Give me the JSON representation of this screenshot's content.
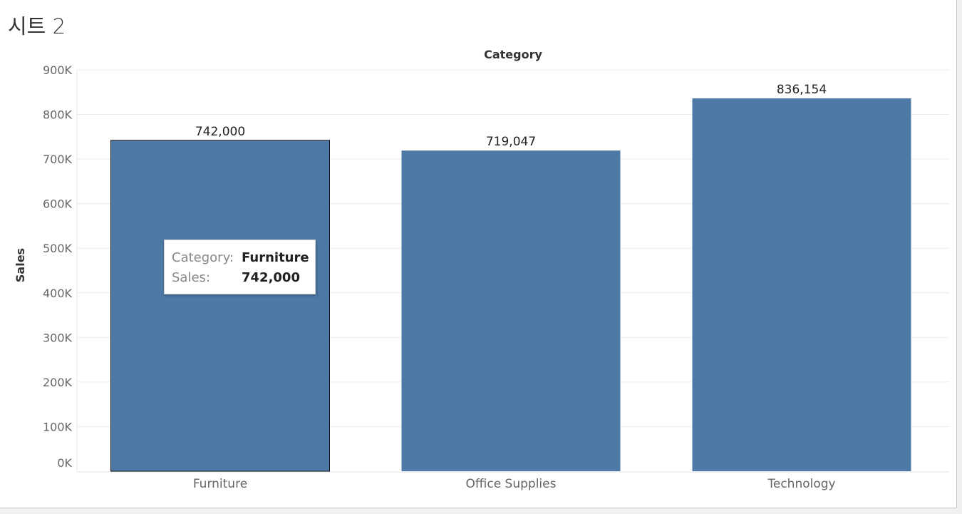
{
  "sheet": {
    "title": "시트 2"
  },
  "chart_data": {
    "type": "bar",
    "title": "",
    "xlabel": "Category",
    "ylabel": "Sales",
    "categories": [
      "Furniture",
      "Office Supplies",
      "Technology"
    ],
    "values": [
      742000,
      719047,
      836154
    ],
    "value_labels": [
      "742,000",
      "719,047",
      "836,154"
    ],
    "ylim": [
      0,
      900000
    ],
    "yticks": [
      0,
      100000,
      200000,
      300000,
      400000,
      500000,
      600000,
      700000,
      800000,
      900000
    ],
    "ytick_labels": [
      "0K",
      "100K",
      "200K",
      "300K",
      "400K",
      "500K",
      "600K",
      "700K",
      "800K",
      "900K"
    ],
    "grid": true,
    "bar_color": "#4e79a7",
    "selected_index": 0
  },
  "tooltip": {
    "category_key": "Category:",
    "category_value": "Furniture",
    "sales_key": "Sales:",
    "sales_value": "742,000"
  }
}
